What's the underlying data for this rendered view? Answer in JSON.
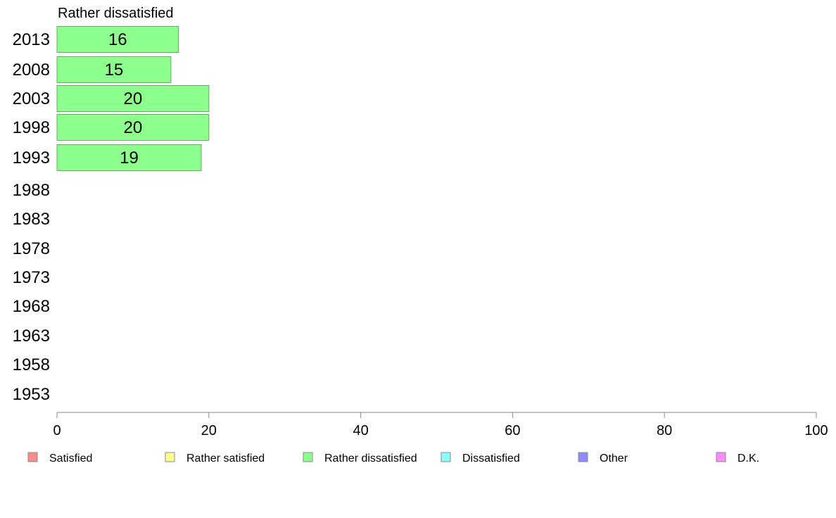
{
  "chart_data": {
    "type": "bar",
    "orientation": "horizontal",
    "title": "Rather dissatisfied",
    "categories": [
      "2013",
      "2008",
      "2003",
      "1998",
      "1993",
      "1988",
      "1983",
      "1978",
      "1973",
      "1968",
      "1963",
      "1958",
      "1953"
    ],
    "series": [
      {
        "name": "Rather dissatisfied",
        "color": "#8cff8c",
        "values": [
          16,
          15,
          20,
          20,
          19,
          null,
          null,
          null,
          null,
          null,
          null,
          null,
          null
        ]
      }
    ],
    "xlim": [
      0,
      100
    ],
    "xticks": [
      0,
      20,
      40,
      60,
      80,
      100
    ],
    "grid": false,
    "legend_position": "bottom",
    "legend": [
      {
        "label": "Satisfied",
        "color": "#ff8c8c"
      },
      {
        "label": "Rather satisfied",
        "color": "#ffff8c"
      },
      {
        "label": "Rather dissatisfied",
        "color": "#8cff8c"
      },
      {
        "label": "Dissatisfied",
        "color": "#8cffff"
      },
      {
        "label": "Other",
        "color": "#8c8cff"
      },
      {
        "label": "D.K.",
        "color": "#ff8cff"
      }
    ]
  }
}
